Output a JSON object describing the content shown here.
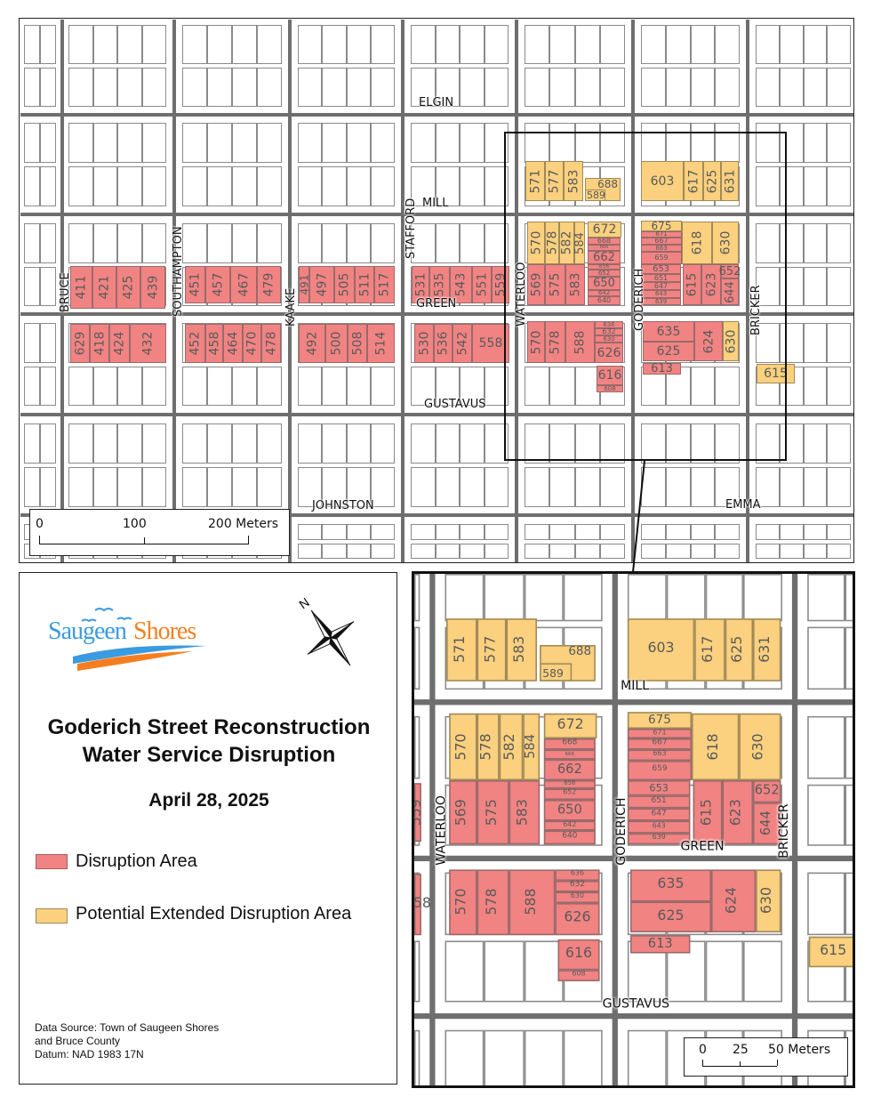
{
  "colors": {
    "disruption": "#f28383",
    "potential": "#fbd07e",
    "road": "#6e6e6e"
  },
  "streets": [
    "ELGIN",
    "MILL",
    "STAFFORD",
    "BRUCE",
    "SOUTHAMPTON",
    "KAAKE",
    "GREEN",
    "WATERLOO",
    "GODERICH",
    "BRICKER",
    "GUSTAVUS",
    "JOHNSTON",
    "EMMA"
  ],
  "parcels": [
    {
      "address": "411",
      "status": "disruption"
    },
    {
      "address": "421",
      "status": "disruption"
    },
    {
      "address": "425",
      "status": "disruption"
    },
    {
      "address": "439",
      "status": "disruption"
    },
    {
      "address": "629",
      "status": "disruption"
    },
    {
      "address": "418",
      "status": "disruption"
    },
    {
      "address": "424",
      "status": "disruption"
    },
    {
      "address": "432",
      "status": "disruption"
    },
    {
      "address": "451",
      "status": "disruption"
    },
    {
      "address": "457",
      "status": "disruption"
    },
    {
      "address": "467",
      "status": "disruption"
    },
    {
      "address": "479",
      "status": "disruption"
    },
    {
      "address": "452",
      "status": "disruption"
    },
    {
      "address": "458",
      "status": "disruption"
    },
    {
      "address": "464",
      "status": "disruption"
    },
    {
      "address": "470",
      "status": "disruption"
    },
    {
      "address": "478",
      "status": "disruption"
    },
    {
      "address": "491",
      "status": "disruption"
    },
    {
      "address": "497",
      "status": "disruption"
    },
    {
      "address": "505",
      "status": "disruption"
    },
    {
      "address": "511",
      "status": "disruption"
    },
    {
      "address": "517",
      "status": "disruption"
    },
    {
      "address": "492",
      "status": "disruption"
    },
    {
      "address": "500",
      "status": "disruption"
    },
    {
      "address": "508",
      "status": "disruption"
    },
    {
      "address": "514",
      "status": "disruption"
    },
    {
      "address": "531",
      "status": "disruption"
    },
    {
      "address": "535",
      "status": "disruption"
    },
    {
      "address": "543",
      "status": "disruption"
    },
    {
      "address": "551",
      "status": "disruption"
    },
    {
      "address": "559",
      "status": "disruption"
    },
    {
      "address": "530",
      "status": "disruption"
    },
    {
      "address": "536",
      "status": "disruption"
    },
    {
      "address": "542",
      "status": "disruption"
    },
    {
      "address": "558",
      "status": "disruption"
    },
    {
      "address": "571",
      "status": "potential"
    },
    {
      "address": "577",
      "status": "potential"
    },
    {
      "address": "583",
      "status": "potential"
    },
    {
      "address": "688",
      "status": "potential"
    },
    {
      "address": "589",
      "status": "potential"
    },
    {
      "address": "603",
      "status": "potential"
    },
    {
      "address": "617",
      "status": "potential"
    },
    {
      "address": "625",
      "status": "potential"
    },
    {
      "address": "631",
      "status": "potential"
    },
    {
      "address": "570",
      "status": "potential"
    },
    {
      "address": "578",
      "status": "potential"
    },
    {
      "address": "582",
      "status": "potential"
    },
    {
      "address": "584",
      "status": "potential"
    },
    {
      "address": "569",
      "status": "disruption"
    },
    {
      "address": "575",
      "status": "disruption"
    },
    {
      "address": "583",
      "status": "disruption"
    },
    {
      "address": "672",
      "status": "potential"
    },
    {
      "address": "668",
      "status": "disruption"
    },
    {
      "address": "666",
      "status": "disruption"
    },
    {
      "address": "662",
      "status": "disruption"
    },
    {
      "address": "656",
      "status": "disruption"
    },
    {
      "address": "652",
      "status": "disruption"
    },
    {
      "address": "650",
      "status": "disruption"
    },
    {
      "address": "642",
      "status": "disruption"
    },
    {
      "address": "640",
      "status": "disruption"
    },
    {
      "address": "570",
      "status": "disruption"
    },
    {
      "address": "578",
      "status": "disruption"
    },
    {
      "address": "588",
      "status": "disruption"
    },
    {
      "address": "636",
      "status": "disruption"
    },
    {
      "address": "632",
      "status": "disruption"
    },
    {
      "address": "630",
      "status": "disruption"
    },
    {
      "address": "626",
      "status": "disruption"
    },
    {
      "address": "616",
      "status": "disruption"
    },
    {
      "address": "608",
      "status": "disruption"
    },
    {
      "address": "675",
      "status": "potential"
    },
    {
      "address": "671",
      "status": "disruption"
    },
    {
      "address": "667",
      "status": "disruption"
    },
    {
      "address": "663",
      "status": "disruption"
    },
    {
      "address": "659",
      "status": "disruption"
    },
    {
      "address": "618",
      "status": "potential"
    },
    {
      "address": "630",
      "status": "potential"
    },
    {
      "address": "653",
      "status": "disruption"
    },
    {
      "address": "651",
      "status": "disruption"
    },
    {
      "address": "647",
      "status": "disruption"
    },
    {
      "address": "643",
      "status": "disruption"
    },
    {
      "address": "639",
      "status": "disruption"
    },
    {
      "address": "615",
      "status": "disruption"
    },
    {
      "address": "623",
      "status": "disruption"
    },
    {
      "address": "652",
      "status": "disruption"
    },
    {
      "address": "644",
      "status": "disruption"
    },
    {
      "address": "635",
      "status": "disruption"
    },
    {
      "address": "625",
      "status": "disruption"
    },
    {
      "address": "624",
      "status": "disruption"
    },
    {
      "address": "630",
      "status": "potential"
    },
    {
      "address": "613",
      "status": "disruption"
    },
    {
      "address": "615",
      "status": "potential"
    }
  ],
  "main_scale": {
    "labels": [
      "0",
      "100",
      "200 Meters"
    ]
  },
  "inset_scale": {
    "labels": [
      "0",
      "25",
      "50 Meters"
    ]
  },
  "legend": {
    "logo_text_1": "Saugeen",
    "logo_text_2": "Shores",
    "north_label": "N",
    "title_1": "Goderich Street  Reconstruction",
    "title_2": "Water Service Disruption",
    "date": "April 28, 2025",
    "items": [
      {
        "label": "Disruption Area",
        "color": "#f28383"
      },
      {
        "label": "Potential Extended Disruption Area",
        "color": "#fbd07e"
      }
    ],
    "source_1": "Data Source: Town of Saugeen Shores",
    "source_2": "and Bruce County",
    "source_3": "Datum: NAD 1983 17N"
  }
}
